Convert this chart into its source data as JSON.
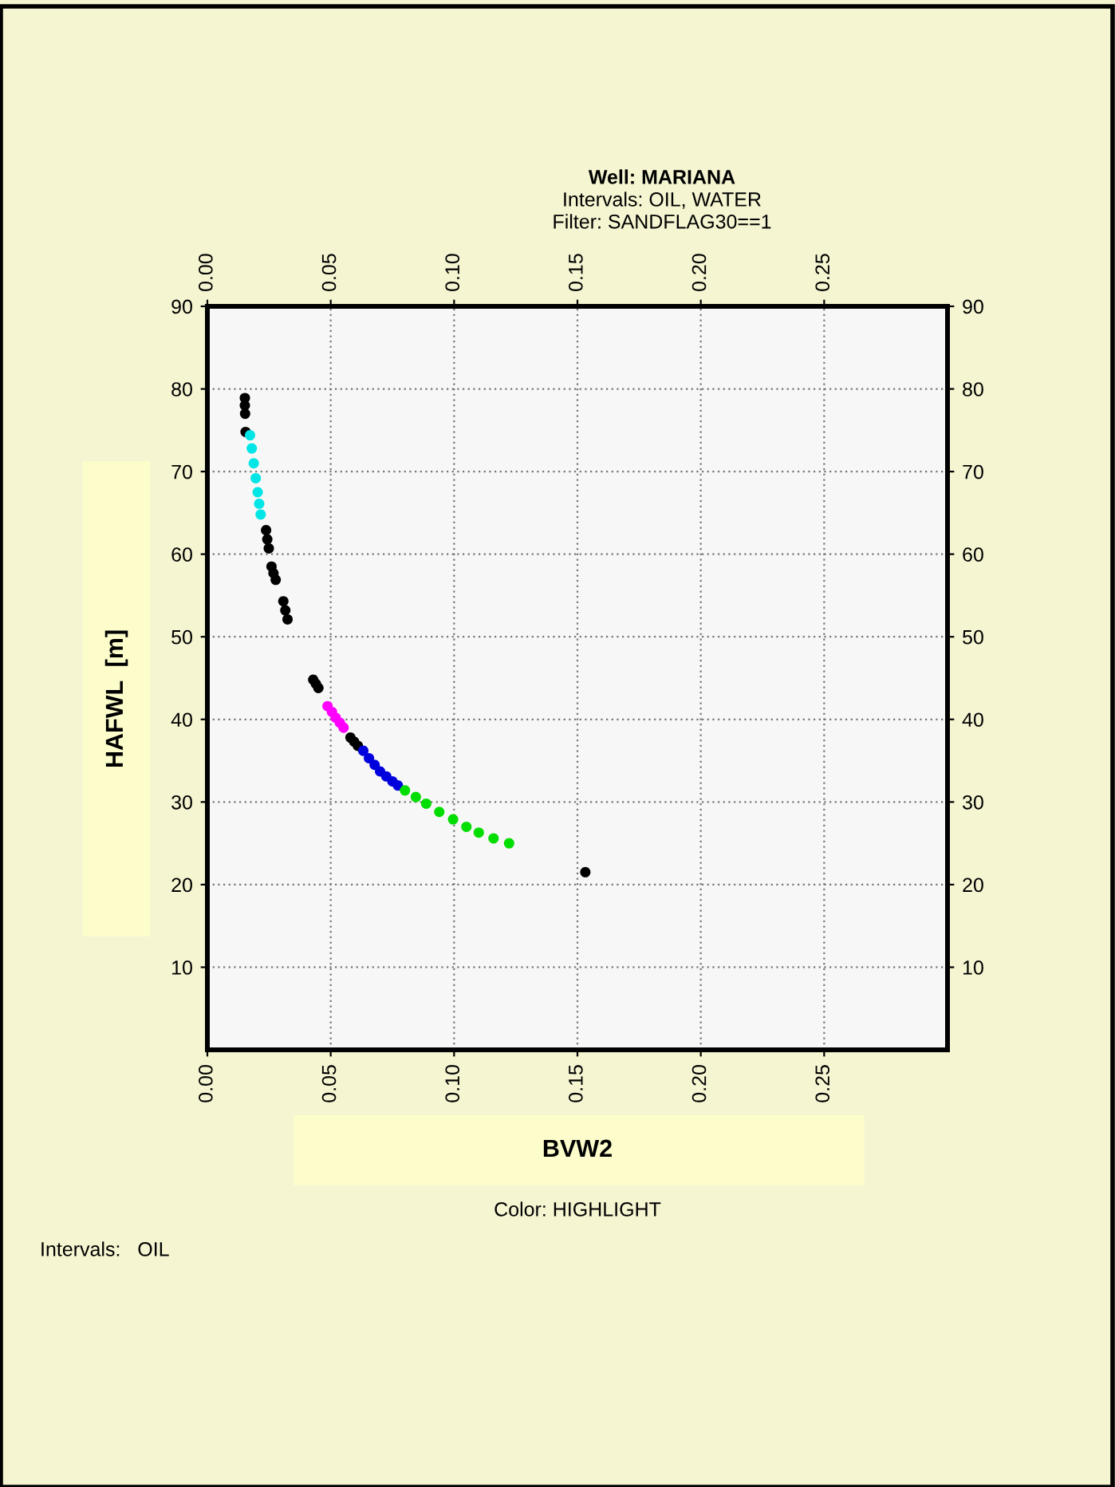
{
  "chart_data": {
    "type": "scatter",
    "title": "Well: MARIANA",
    "subtitle": "Intervals: OIL, WATER\nFilter: SANDFLAG30==1",
    "xlabel": "BVW2",
    "ylabel": "HAFWL  [m]",
    "annotations": [
      "Color: HIGHLIGHT",
      "Intervals:   OIL"
    ],
    "xlim": [
      0,
      0.3
    ],
    "xticks": [
      {
        "value": 0,
        "label": "0.00"
      },
      0.05,
      {
        "value": 0.1,
        "label": "0.10"
      },
      0.15,
      {
        "value": 0.2,
        "label": "0.20"
      },
      0.25
    ],
    "x2lim": [
      0,
      0.3
    ],
    "x2ticks": [
      {
        "value": 0,
        "label": "0.00"
      },
      0.05,
      {
        "value": 0.1,
        "label": "0.10"
      },
      0.15,
      {
        "value": 0.2,
        "label": "0.20"
      },
      0.25
    ],
    "ylim": [
      0,
      90
    ],
    "yticks": [
      10,
      20,
      30,
      40,
      50,
      60,
      70,
      80,
      90
    ],
    "y2lim": [
      0,
      90
    ],
    "y2ticks": [
      10,
      20,
      30,
      40,
      50,
      60,
      70,
      80,
      90
    ],
    "grid": true,
    "marker": "circle",
    "series": [
      {
        "color": "#000000",
        "x": [
          0.0152,
          0.0152,
          0.0153,
          0.0155,
          0.0238,
          0.0243,
          0.0249,
          0.026,
          0.0268,
          0.0277,
          0.0308,
          0.0316,
          0.0325,
          0.0429,
          0.044,
          0.045,
          0.058,
          0.0595,
          0.061,
          0.1532
        ],
        "values": [
          78.9,
          78.0,
          77.0,
          74.8,
          62.9,
          61.8,
          60.7,
          58.5,
          57.7,
          56.9,
          54.3,
          53.2,
          52.1,
          44.8,
          44.3,
          43.8,
          37.8,
          37.3,
          36.8,
          21.5
        ]
      },
      {
        "color": "#00e5e5",
        "x": [
          0.0173,
          0.018,
          0.0188,
          0.0196,
          0.0204,
          0.021,
          0.0216
        ],
        "values": [
          74.4,
          72.8,
          71.0,
          69.2,
          67.5,
          66.1,
          64.8
        ]
      },
      {
        "color": "#ff00ff",
        "x": [
          0.0487,
          0.0505,
          0.052,
          0.0537,
          0.0552
        ],
        "values": [
          41.6,
          40.9,
          40.2,
          39.6,
          39.0
        ]
      },
      {
        "color": "#0000dd",
        "x": [
          0.0632,
          0.0655,
          0.0678,
          0.07,
          0.0725,
          0.075,
          0.0772
        ],
        "values": [
          36.2,
          35.3,
          34.5,
          33.7,
          33.1,
          32.5,
          32.0
        ]
      },
      {
        "color": "#00dd00",
        "x": [
          0.0801,
          0.0845,
          0.0887,
          0.094,
          0.0996,
          0.105,
          0.11,
          0.116,
          0.1223
        ],
        "values": [
          31.4,
          30.6,
          29.8,
          28.8,
          27.9,
          27.0,
          26.3,
          25.6,
          25.0
        ]
      }
    ]
  }
}
